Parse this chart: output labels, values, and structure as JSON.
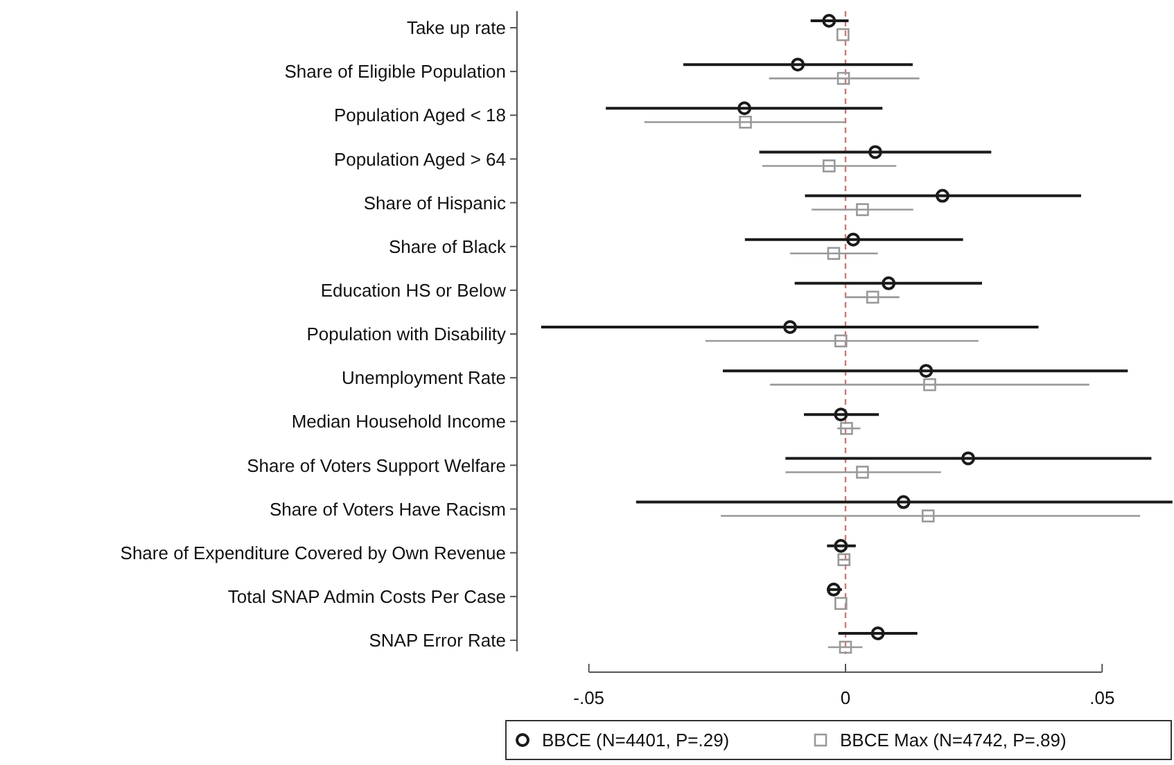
{
  "chart_data": {
    "type": "scatter",
    "orientation": "horizontal",
    "categories": [
      "Take up rate",
      "Share of Eligible Population",
      "Population Aged < 18",
      "Population Aged > 64",
      "Share of Hispanic",
      "Share of Black",
      "Education HS or Below",
      "Population with Disability",
      "Unemployment Rate",
      "Median Household Income",
      "Share of Voters Support Welfare",
      "Share of Voters Have Racism",
      "Share of Expenditure Covered by Own Revenue",
      "Total SNAP Admin Costs Per Case",
      "SNAP Error Rate"
    ],
    "series": [
      {
        "name": "BBCE (N=4401, P=.29)",
        "color": "#1a1a1a",
        "marker": "circle",
        "values": [
          -0.0032,
          -0.0093,
          -0.0197,
          0.0058,
          0.0189,
          0.0015,
          0.0084,
          -0.0108,
          0.0157,
          -0.0009,
          0.0239,
          0.0113,
          -0.0009,
          -0.0023,
          0.0063
        ],
        "errors": [
          [
            -0.0068,
            0.0006
          ],
          [
            -0.0316,
            0.0131
          ],
          [
            -0.0467,
            0.0072
          ],
          [
            -0.0168,
            0.0284
          ],
          [
            -0.0079,
            0.0459
          ],
          [
            -0.0196,
            0.0229
          ],
          [
            -0.0099,
            0.0266
          ],
          [
            -0.0593,
            0.0376
          ],
          [
            -0.0239,
            0.055
          ],
          [
            -0.0081,
            0.0065
          ],
          [
            -0.0117,
            0.0596
          ],
          [
            -0.0408,
            0.0637
          ],
          [
            -0.0036,
            0.002
          ],
          [
            -0.0036,
            -0.0007
          ],
          [
            -0.0014,
            0.014
          ]
        ]
      },
      {
        "name": "BBCE Max (N=4742, P=.89)",
        "color": "#999999",
        "marker": "square",
        "values": [
          -0.0005,
          -0.0004,
          -0.0195,
          -0.0032,
          0.0033,
          -0.0023,
          0.0053,
          -0.0009,
          0.0164,
          0.0002,
          0.0033,
          0.0161,
          -0.0003,
          -0.0009,
          0
        ],
        "errors": [
          null,
          [
            -0.0149,
            0.0144
          ],
          [
            -0.0392,
            -0.0001
          ],
          [
            -0.0162,
            0.0099
          ],
          [
            -0.0066,
            0.0132
          ],
          [
            -0.0108,
            0.0063
          ],
          [
            0,
            0.0105
          ],
          [
            -0.0273,
            0.0259
          ],
          [
            -0.0147,
            0.0475
          ],
          [
            -0.0016,
            0.0029
          ],
          [
            -0.0117,
            0.0186
          ],
          [
            -0.0243,
            0.0574
          ],
          [
            -0.0012,
            0.0009
          ],
          null,
          [
            -0.0034,
            0.0033
          ]
        ]
      }
    ],
    "xlim": [
      -0.064,
      0.064
    ],
    "xticks": [
      {
        "value": -0.05,
        "label": "-.05"
      },
      0,
      {
        "value": 0.05,
        "label": ".05"
      }
    ],
    "ref_lines": [
      {
        "axis": "x",
        "value": 0,
        "color": "#e07070",
        "line_style": "dashed"
      }
    ],
    "grid": false,
    "legend": "bottom"
  }
}
